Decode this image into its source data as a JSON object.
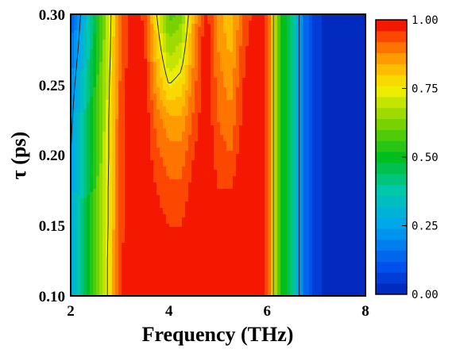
{
  "chart_data": {
    "type": "heatmap",
    "title": "",
    "xlabel": "Frequency (THz)",
    "ylabel": "τ (ps)",
    "xlim": [
      2,
      8
    ],
    "ylim": [
      0.1,
      0.3
    ],
    "x_ticks": [
      "2",
      "4",
      "6",
      "8"
    ],
    "y_ticks": [
      "0.10",
      "0.15",
      "0.20",
      "0.25",
      "0.30"
    ],
    "colorbar": {
      "range": [
        0,
        1
      ],
      "ticks": [
        "0.00",
        "0.25",
        "0.50",
        "0.75",
        "1.00"
      ],
      "levels": 25
    },
    "contour_lines": [
      0.25,
      0.75
    ],
    "x": [
      2.0,
      2.25,
      2.5,
      2.75,
      3.0,
      3.25,
      3.5,
      3.75,
      4.0,
      4.25,
      4.5,
      4.75,
      5.0,
      5.25,
      5.5,
      5.75,
      6.0,
      6.25,
      6.5,
      6.75,
      7.0,
      7.25,
      7.5,
      7.75,
      8.0
    ],
    "y": [
      0.1,
      0.125,
      0.15,
      0.175,
      0.2,
      0.225,
      0.25,
      0.275,
      0.3
    ],
    "z": [
      [
        0.3,
        0.45,
        0.6,
        0.75,
        0.95,
        1.0,
        1.0,
        1.0,
        1.0,
        1.0,
        1.0,
        1.0,
        1.0,
        1.0,
        1.0,
        1.0,
        0.95,
        0.55,
        0.4,
        0.15,
        0.05,
        0.02,
        0.02,
        0.02,
        0.02
      ],
      [
        0.29,
        0.44,
        0.59,
        0.75,
        0.95,
        1.0,
        1.0,
        1.0,
        0.98,
        0.98,
        1.0,
        1.0,
        1.0,
        1.0,
        1.0,
        1.0,
        0.95,
        0.55,
        0.4,
        0.15,
        0.05,
        0.02,
        0.02,
        0.02,
        0.02
      ],
      [
        0.28,
        0.43,
        0.58,
        0.74,
        0.94,
        1.0,
        1.0,
        0.98,
        0.96,
        0.96,
        1.0,
        1.0,
        0.98,
        1.0,
        1.0,
        1.0,
        0.95,
        0.55,
        0.4,
        0.15,
        0.05,
        0.02,
        0.02,
        0.02,
        0.02
      ],
      [
        0.26,
        0.41,
        0.57,
        0.74,
        0.94,
        1.0,
        1.0,
        0.96,
        0.93,
        0.93,
        0.98,
        1.0,
        0.96,
        0.96,
        1.0,
        1.0,
        0.95,
        0.55,
        0.4,
        0.15,
        0.05,
        0.02,
        0.02,
        0.02,
        0.02
      ],
      [
        0.25,
        0.4,
        0.56,
        0.73,
        0.93,
        1.0,
        1.0,
        0.93,
        0.9,
        0.9,
        0.96,
        1.0,
        0.94,
        0.92,
        0.99,
        1.0,
        0.95,
        0.55,
        0.4,
        0.15,
        0.05,
        0.02,
        0.02,
        0.02,
        0.02
      ],
      [
        0.23,
        0.38,
        0.55,
        0.73,
        0.93,
        1.0,
        1.0,
        0.9,
        0.85,
        0.85,
        0.93,
        1.0,
        0.92,
        0.89,
        0.97,
        1.0,
        0.95,
        0.55,
        0.4,
        0.15,
        0.05,
        0.02,
        0.02,
        0.02,
        0.02
      ],
      [
        0.2,
        0.35,
        0.53,
        0.72,
        0.92,
        1.0,
        0.98,
        0.85,
        0.75,
        0.78,
        0.9,
        1.0,
        0.9,
        0.86,
        0.96,
        1.0,
        0.95,
        0.55,
        0.4,
        0.15,
        0.05,
        0.02,
        0.02,
        0.02,
        0.02
      ],
      [
        0.16,
        0.31,
        0.5,
        0.7,
        0.91,
        1.0,
        0.97,
        0.8,
        0.66,
        0.7,
        0.87,
        1.0,
        0.88,
        0.83,
        0.94,
        1.0,
        0.95,
        0.55,
        0.4,
        0.15,
        0.05,
        0.02,
        0.02,
        0.02,
        0.02
      ],
      [
        0.12,
        0.28,
        0.48,
        0.69,
        0.9,
        0.99,
        0.95,
        0.75,
        0.58,
        0.62,
        0.84,
        0.99,
        0.86,
        0.8,
        0.92,
        0.98,
        0.95,
        0.55,
        0.4,
        0.15,
        0.05,
        0.02,
        0.02,
        0.02,
        0.02
      ]
    ]
  }
}
